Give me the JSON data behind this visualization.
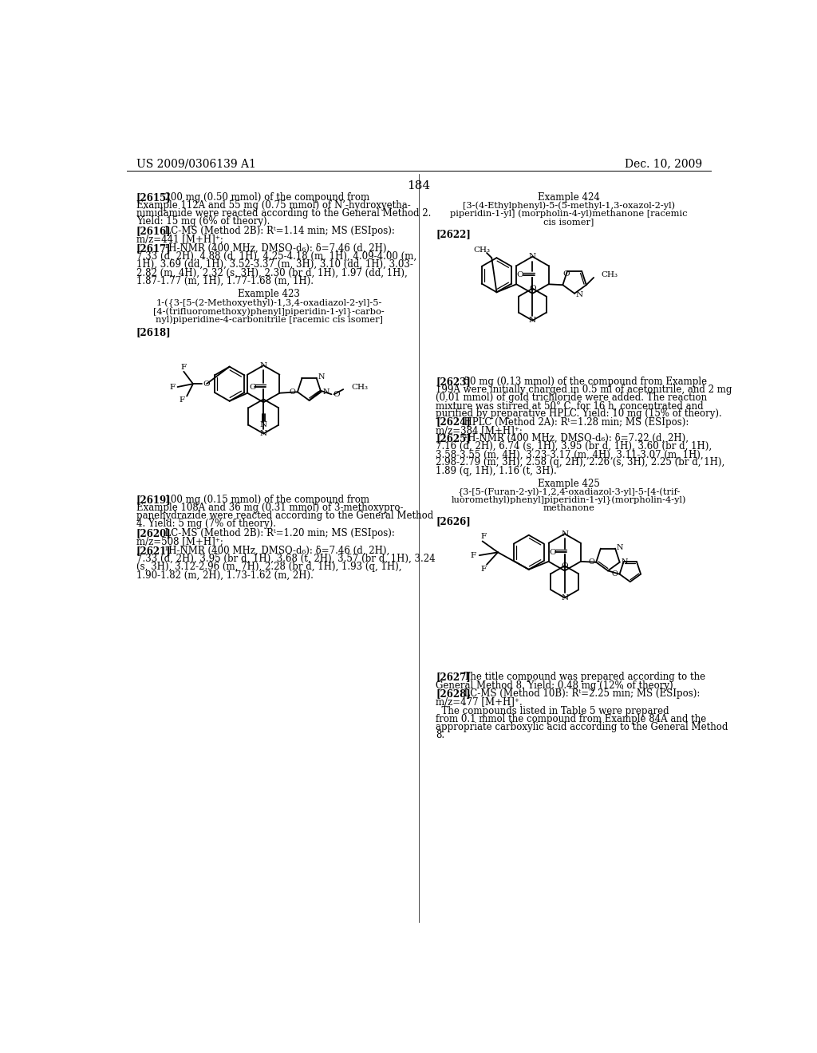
{
  "page_number": "184",
  "header_left": "US 2009/0306139 A1",
  "header_right": "Dec. 10, 2009",
  "background_color": "#ffffff",
  "text_color": "#000000"
}
